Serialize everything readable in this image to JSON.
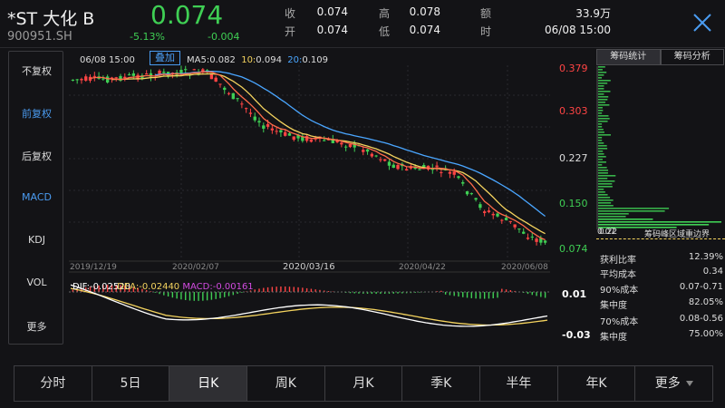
{
  "quote": {
    "name": "*ST 大化 B",
    "code": "900951.SH",
    "price": "0.074",
    "change_pct": "-5.13%",
    "change": "-0.004",
    "fields": [
      {
        "label": "收",
        "value": "0.074"
      },
      {
        "label": "高",
        "value": "0.078"
      },
      {
        "label": "额",
        "value": "33.9万"
      },
      {
        "label": "开",
        "value": "0.074"
      },
      {
        "label": "低",
        "value": "0.074"
      },
      {
        "label": "时",
        "value": "06/08 15:00"
      }
    ]
  },
  "left_menu": [
    "不复权",
    "前复权",
    "后复权",
    "MACD",
    "KDJ",
    "VOL",
    "更多"
  ],
  "kline": {
    "date_label": "06/08 15:00",
    "overlay_button": "叠加",
    "ma": [
      {
        "label": "MA5:",
        "value": "0.082",
        "color": "#ff6b4a"
      },
      {
        "label": "10:",
        "value": "0.094",
        "color": "#f4d35e"
      },
      {
        "label": "20:",
        "value": "0.109",
        "color": "#4aa6ff"
      }
    ],
    "price_ticks": [
      {
        "value": "0.379",
        "color": "#ff4444"
      },
      {
        "value": "0.303",
        "color": "#ff4444"
      },
      {
        "value": "0.227",
        "color": "#dddddd"
      },
      {
        "value": "0.150",
        "color": "#3fcf54"
      },
      {
        "value": "0.074",
        "color": "#3fcf54"
      }
    ],
    "dates": [
      "2019/12/19",
      "2020/02/07",
      "2020/03/16",
      "2020/04/22",
      "2020/06/08"
    ]
  },
  "macd": {
    "dif": "DIF:-0.02520",
    "dea": "DEA:-0.02440",
    "macd": "MACD:-0.00161",
    "dif_color": "#ffffff",
    "dea_color": "#f4d35e",
    "macd_color": "#d24be0",
    "ticks": [
      "0.01",
      "-0.03"
    ]
  },
  "chip": {
    "tabs": [
      "筹码统计",
      "筹码分析"
    ],
    "axis_left": "0.07",
    "axis_left_overlap": "0.22",
    "header_label": "筹码峰区域重边界",
    "stats": [
      {
        "label": "获利比率",
        "value": "12.39%"
      },
      {
        "label": "平均成本",
        "value": "0.34"
      },
      {
        "label": "90%成本",
        "value": "0.07-0.71"
      },
      {
        "label": "集中度",
        "value": "82.05%"
      },
      {
        "label": "70%成本",
        "value": "0.08-0.56"
      },
      {
        "label": "集中度",
        "value": "75.00%"
      }
    ]
  },
  "periods": [
    {
      "label": "分时"
    },
    {
      "label": "5日"
    },
    {
      "label": "日K",
      "active": true
    },
    {
      "label": "周K"
    },
    {
      "label": "月K"
    },
    {
      "label": "季K"
    },
    {
      "label": "半年"
    },
    {
      "label": "年K"
    },
    {
      "label": "更多",
      "dropdown": true
    }
  ],
  "colors": {
    "up": "#ff4444",
    "down": "#3fcf54",
    "accent": "#4a9bf0"
  }
}
